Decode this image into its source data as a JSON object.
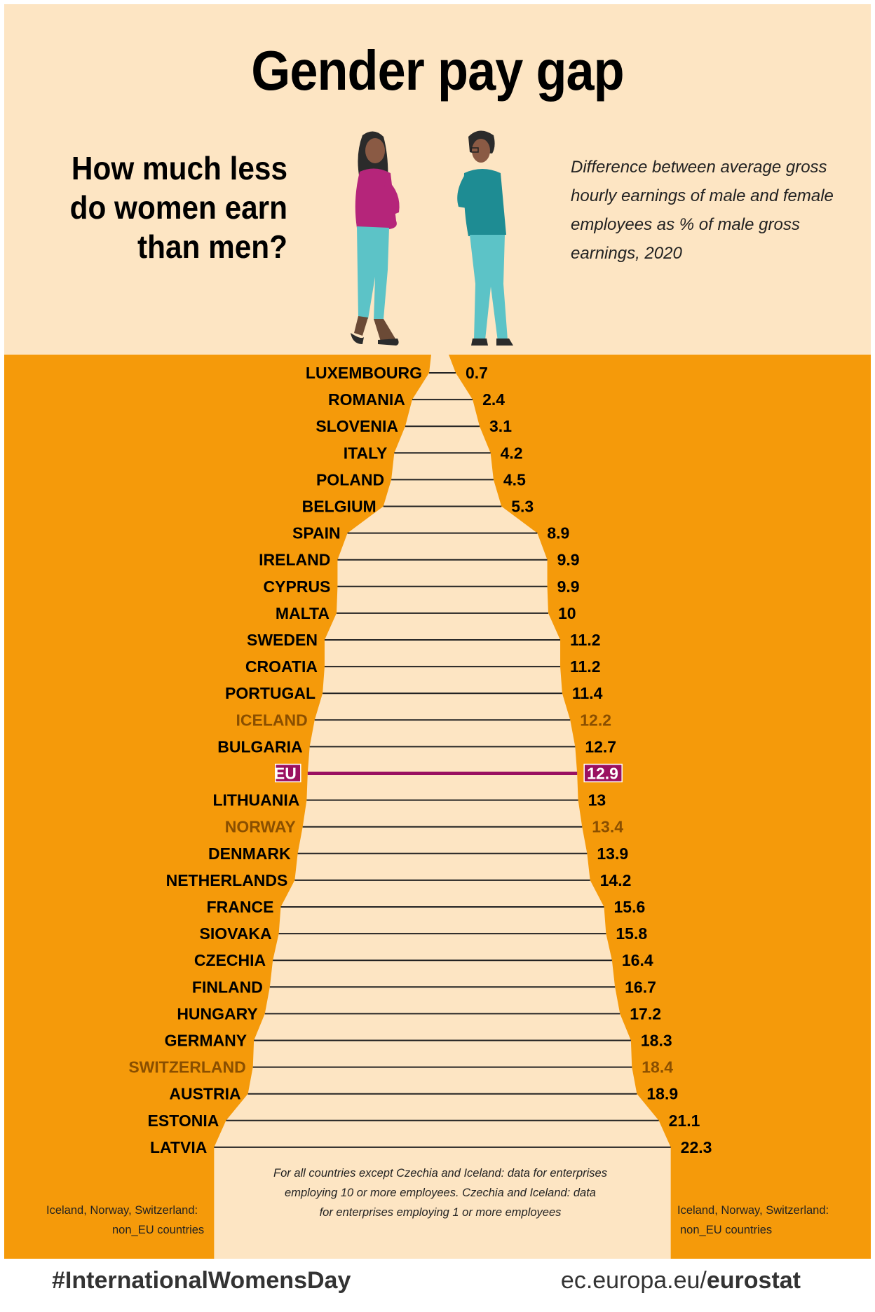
{
  "header": {
    "title": "Gender pay gap",
    "question_line1": "How much less",
    "question_line2": "do women earn",
    "question_line3": "than men?",
    "subtitle": "Difference between average gross hourly earnings of male and female employees as % of male gross earnings, 2020"
  },
  "colors": {
    "background": "#fde5c3",
    "panel": "#f59a0a",
    "label": "#000000",
    "non_eu_label": "#8a4f00",
    "eu_highlight": "#9a1060",
    "line": "#222222"
  },
  "chart_data": {
    "type": "bar",
    "title": "Gender pay gap",
    "unit": "%",
    "categories": [
      "LUXEMBOURG",
      "ROMANIA",
      "SLOVENIA",
      "ITALY",
      "POLAND",
      "BELGIUM",
      "SPAIN",
      "IRELAND",
      "CYPRUS",
      "MALTA",
      "SWEDEN",
      "CROATIA",
      "PORTUGAL",
      "ICELAND",
      "BULGARIA",
      "EU",
      "LITHUANIA",
      "NORWAY",
      "DENMARK",
      "NETHERLANDS",
      "FRANCE",
      "SIOVAKA",
      "CZECHIA",
      "FINLAND",
      "HUNGARY",
      "GERMANY",
      "SWITZERLAND",
      "AUSTRIA",
      "ESTONIA",
      "LATVIA"
    ],
    "values": [
      0.7,
      2.4,
      3.1,
      4.2,
      4.5,
      5.3,
      8.9,
      9.9,
      9.9,
      10,
      11.2,
      11.2,
      11.4,
      12.2,
      12.7,
      12.9,
      13,
      13.4,
      13.9,
      14.2,
      15.6,
      15.8,
      16.4,
      16.7,
      17.2,
      18.3,
      18.4,
      18.9,
      21.1,
      22.3
    ],
    "value_labels": [
      "0.7",
      "2.4",
      "3.1",
      "4.2",
      "4.5",
      "5.3",
      "8.9",
      "9.9",
      "9.9",
      "10",
      "11.2",
      "11.2",
      "11.4",
      "12.2",
      "12.7",
      "12.9",
      "13",
      "13.4",
      "13.9",
      "14.2",
      "15.6",
      "15.8",
      "16.4",
      "16.7",
      "17.2",
      "18.3",
      "18.4",
      "18.9",
      "21.1",
      "22.3"
    ],
    "groups": [
      "eu",
      "eu",
      "eu",
      "eu",
      "eu",
      "eu",
      "eu",
      "eu",
      "eu",
      "eu",
      "eu",
      "eu",
      "eu",
      "non_eu",
      "eu",
      "aggregate",
      "eu",
      "non_eu",
      "eu",
      "eu",
      "eu",
      "eu",
      "eu",
      "eu",
      "eu",
      "eu",
      "non_eu",
      "eu",
      "eu",
      "eu"
    ],
    "orientation": "horizontal-centered",
    "ylim": [
      0,
      22.3
    ]
  },
  "notes": {
    "footnote_line1": "For all countries except Czechia and Iceland: data for enterprises",
    "footnote_line2": "employing 10 or more employees. Czechia and Iceland: data",
    "footnote_line3": "for enterprises employing 1 or more employees",
    "non_eu_line1": "Iceland, Norway, Switzerland:",
    "non_eu_line2": "non_EU countries"
  },
  "footer": {
    "hashtag": "#InternationalWomensDay",
    "site_prefix": "ec.europa.eu/",
    "site_brand": "eurostat"
  }
}
